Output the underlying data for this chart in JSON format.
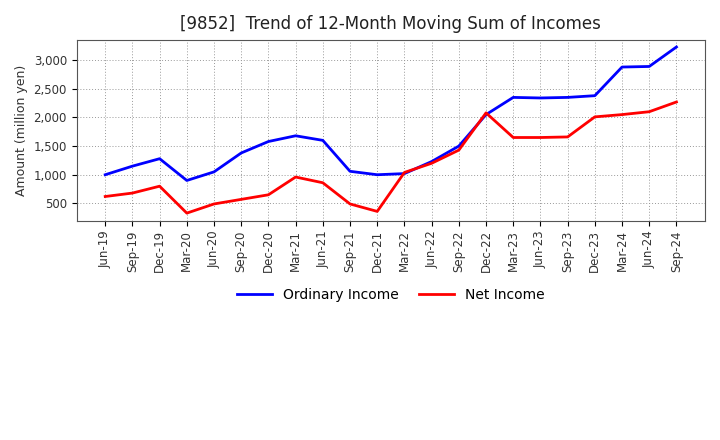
{
  "title": "[9852]  Trend of 12-Month Moving Sum of Incomes",
  "ylabel": "Amount (million yen)",
  "x_labels": [
    "Jun-19",
    "Sep-19",
    "Dec-19",
    "Mar-20",
    "Jun-20",
    "Sep-20",
    "Dec-20",
    "Mar-21",
    "Jun-21",
    "Sep-21",
    "Dec-21",
    "Mar-22",
    "Jun-22",
    "Sep-22",
    "Dec-22",
    "Mar-23",
    "Jun-23",
    "Sep-23",
    "Dec-23",
    "Mar-24",
    "Jun-24",
    "Sep-24"
  ],
  "ordinary_income": [
    1000,
    1150,
    1280,
    900,
    1050,
    1380,
    1580,
    1680,
    1600,
    1060,
    1000,
    1020,
    1230,
    1500,
    2050,
    2350,
    2340,
    2350,
    2380,
    2880,
    2890,
    3230
  ],
  "net_income": [
    620,
    680,
    800,
    330,
    490,
    570,
    650,
    960,
    860,
    490,
    360,
    1040,
    1200,
    1430,
    2080,
    1650,
    1650,
    1660,
    2010,
    2050,
    2100,
    2270
  ],
  "ordinary_color": "#0000ff",
  "net_color": "#ff0000",
  "background_color": "#ffffff",
  "grid_color": "#999999",
  "ylim_min": 200,
  "ylim_max": 3350,
  "yticks": [
    500,
    1000,
    1500,
    2000,
    2500,
    3000
  ],
  "line_width": 2.0,
  "title_fontsize": 12,
  "axis_fontsize": 9,
  "tick_fontsize": 8.5,
  "legend_labels": [
    "Ordinary Income",
    "Net Income"
  ]
}
